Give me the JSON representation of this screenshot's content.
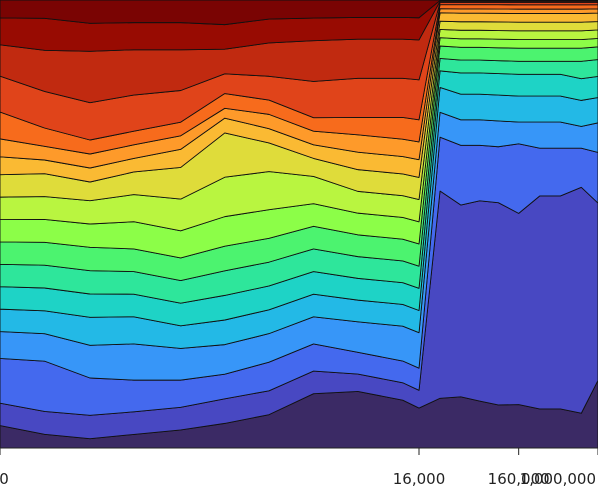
{
  "chart_data": {
    "type": "area",
    "stacked": true,
    "normalized": true,
    "x_scale": "log",
    "x_labels_at": [
      1,
      16000,
      160000,
      1000000
    ],
    "x_tick_labels": [
      "0",
      "16,000",
      "160,000",
      "1,000,000"
    ],
    "x_tick_positions": [
      1,
      16000,
      160000,
      1000000
    ],
    "x": [
      1,
      2.8,
      8,
      22,
      65,
      180,
      500,
      1400,
      3900,
      11000,
      16000,
      26000,
      42000,
      65000,
      100000,
      160000,
      260000,
      420000,
      680000,
      1000000
    ],
    "ylim": [
      0,
      1
    ],
    "grid": false,
    "legend": "none",
    "colormap": "turbo",
    "series_colors": [
      "#3b2a65",
      "#4848c2",
      "#4469ee",
      "#3796f8",
      "#23b9e6",
      "#1ed3c6",
      "#2ee69b",
      "#4cf36f",
      "#8cfe48",
      "#b9f540",
      "#dfdc3a",
      "#faba33",
      "#fe9a2a",
      "#f76b1c",
      "#e0441a",
      "#c12a10",
      "#980b02",
      "#7a0403"
    ],
    "series": [
      {
        "values": [
          0.05,
          0.03,
          0.02,
          0.03,
          0.04,
          0.05,
          0.07,
          0.12,
          0.13,
          0.11,
          0.09,
          0.12,
          0.12,
          0.11,
          0.1,
          0.1,
          0.09,
          0.09,
          0.08,
          0.16
        ]
      },
      {
        "values": [
          0.05,
          0.05,
          0.05,
          0.05,
          0.05,
          0.05,
          0.05,
          0.05,
          0.04,
          0.04,
          0.04,
          0.5,
          0.45,
          0.47,
          0.47,
          0.44,
          0.49,
          0.49,
          0.52,
          0.42
        ]
      },
      {
        "values": [
          0.1,
          0.11,
          0.08,
          0.07,
          0.06,
          0.05,
          0.06,
          0.06,
          0.05,
          0.05,
          0.05,
          0.13,
          0.14,
          0.13,
          0.13,
          0.16,
          0.11,
          0.11,
          0.09,
          0.12
        ]
      },
      {
        "values": [
          0.06,
          0.06,
          0.07,
          0.08,
          0.07,
          0.06,
          0.06,
          0.06,
          0.07,
          0.08,
          0.08,
          0.06,
          0.06,
          0.06,
          0.06,
          0.05,
          0.06,
          0.06,
          0.05,
          0.07
        ]
      },
      {
        "values": [
          0.05,
          0.05,
          0.06,
          0.06,
          0.05,
          0.05,
          0.05,
          0.05,
          0.05,
          0.05,
          0.05,
          0.06,
          0.06,
          0.06,
          0.06,
          0.06,
          0.06,
          0.06,
          0.06,
          0.06
        ]
      },
      {
        "values": [
          0.05,
          0.05,
          0.05,
          0.05,
          0.05,
          0.05,
          0.05,
          0.05,
          0.05,
          0.05,
          0.05,
          0.04,
          0.05,
          0.05,
          0.05,
          0.05,
          0.05,
          0.05,
          0.05,
          0.05
        ]
      },
      {
        "values": [
          0.05,
          0.05,
          0.05,
          0.05,
          0.05,
          0.05,
          0.05,
          0.05,
          0.05,
          0.05,
          0.05,
          0.03,
          0.03,
          0.03,
          0.03,
          0.03,
          0.03,
          0.03,
          0.04,
          0.04
        ]
      },
      {
        "values": [
          0.05,
          0.05,
          0.05,
          0.05,
          0.05,
          0.05,
          0.05,
          0.05,
          0.05,
          0.05,
          0.05,
          0.03,
          0.03,
          0.03,
          0.03,
          0.03,
          0.03,
          0.03,
          0.03,
          0.03
        ]
      },
      {
        "values": [
          0.05,
          0.05,
          0.05,
          0.06,
          0.06,
          0.06,
          0.06,
          0.05,
          0.05,
          0.05,
          0.05,
          0.02,
          0.02,
          0.02,
          0.02,
          0.02,
          0.02,
          0.02,
          0.02,
          0.02
        ]
      },
      {
        "values": [
          0.05,
          0.05,
          0.05,
          0.06,
          0.07,
          0.08,
          0.08,
          0.06,
          0.05,
          0.05,
          0.05,
          0.02,
          0.02,
          0.02,
          0.02,
          0.02,
          0.02,
          0.02,
          0.02,
          0.02
        ]
      },
      {
        "values": [
          0.05,
          0.05,
          0.04,
          0.05,
          0.07,
          0.09,
          0.06,
          0.04,
          0.05,
          0.05,
          0.05,
          0.02,
          0.02,
          0.02,
          0.02,
          0.02,
          0.02,
          0.02,
          0.02,
          0.02
        ]
      },
      {
        "values": [
          0.04,
          0.03,
          0.03,
          0.03,
          0.04,
          0.03,
          0.03,
          0.03,
          0.04,
          0.04,
          0.04,
          0.02,
          0.02,
          0.02,
          0.02,
          0.02,
          0.02,
          0.02,
          0.02,
          0.02
        ]
      },
      {
        "values": [
          0.04,
          0.03,
          0.03,
          0.03,
          0.03,
          0.02,
          0.03,
          0.03,
          0.04,
          0.04,
          0.04,
          0.01,
          0.01,
          0.01,
          0.01,
          0.01,
          0.01,
          0.01,
          0.01,
          0.01
        ]
      },
      {
        "values": [
          0.06,
          0.04,
          0.03,
          0.03,
          0.03,
          0.03,
          0.03,
          0.03,
          0.04,
          0.05,
          0.05,
          0.01,
          0.01,
          0.01,
          0.01,
          0.01,
          0.01,
          0.01,
          0.01,
          0.01
        ]
      },
      {
        "values": [
          0.08,
          0.08,
          0.08,
          0.08,
          0.07,
          0.04,
          0.05,
          0.08,
          0.09,
          0.09,
          0.09,
          0.005,
          0.005,
          0.005,
          0.005,
          0.005,
          0.005,
          0.005,
          0.005,
          0.005
        ]
      },
      {
        "values": [
          0.07,
          0.09,
          0.11,
          0.1,
          0.09,
          0.05,
          0.07,
          0.09,
          0.09,
          0.09,
          0.09,
          0.003,
          0.003,
          0.003,
          0.003,
          0.003,
          0.003,
          0.003,
          0.003,
          0.003
        ]
      },
      {
        "values": [
          0.06,
          0.07,
          0.06,
          0.06,
          0.06,
          0.05,
          0.05,
          0.05,
          0.05,
          0.05,
          0.05,
          0.002,
          0.002,
          0.002,
          0.002,
          0.002,
          0.002,
          0.002,
          0.002,
          0.002
        ]
      },
      {
        "values": [
          0.04,
          0.04,
          0.05,
          0.05,
          0.05,
          0.05,
          0.04,
          0.04,
          0.04,
          0.04,
          0.04,
          0.001,
          0.001,
          0.001,
          0.001,
          0.001,
          0.001,
          0.001,
          0.001,
          0.001
        ]
      }
    ]
  }
}
